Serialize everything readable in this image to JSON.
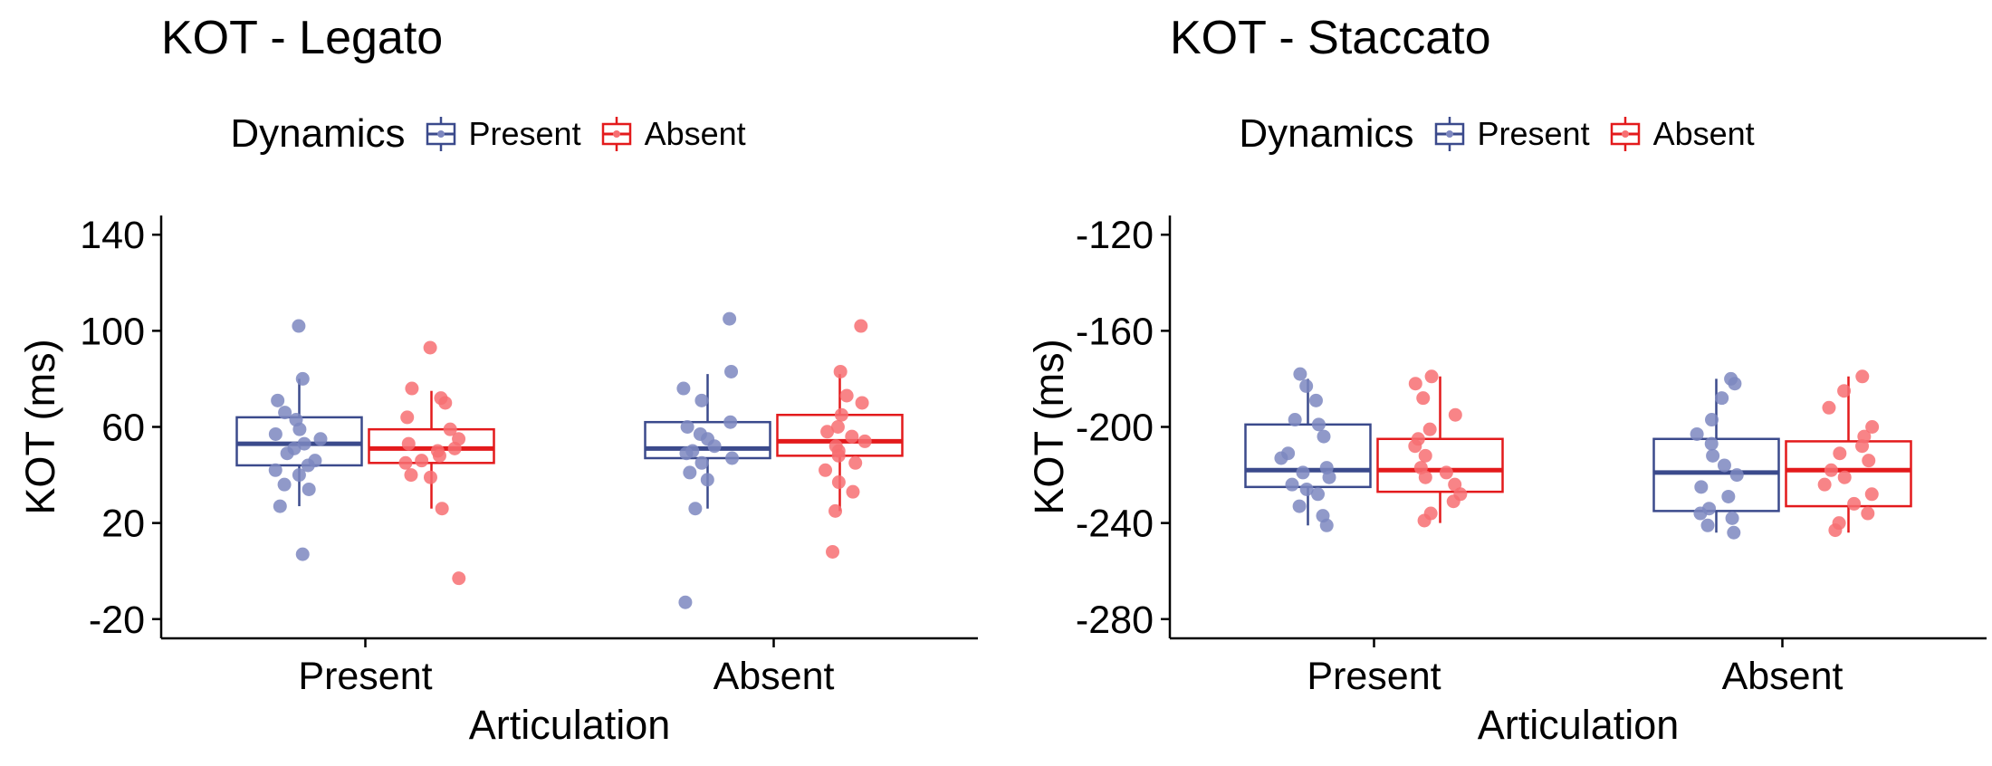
{
  "chart_data": [
    {
      "type": "boxplot",
      "title": "KOT - Legato",
      "xlabel": "Articulation",
      "ylabel": "KOT (ms)",
      "categories": [
        "Present",
        "Absent"
      ],
      "yticks": [
        140,
        100,
        60,
        20,
        -20
      ],
      "ylim": [
        -28,
        148
      ],
      "legend": {
        "title": "Dynamics",
        "position": "top",
        "entries": [
          "Present",
          "Absent"
        ]
      },
      "series": [
        {
          "name": "Present",
          "color": "#3b4a8c",
          "point_color": "#7d87c0",
          "boxes": [
            {
              "category": "Present",
              "q1": 44,
              "median": 53,
              "q3": 64,
              "whisker_low": 27,
              "whisker_high": 80,
              "points": [
                102,
                80,
                71,
                66,
                63,
                59,
                57,
                55,
                53,
                51,
                49,
                46,
                44,
                42,
                40,
                36,
                34,
                27,
                7
              ]
            },
            {
              "category": "Absent",
              "q1": 47,
              "median": 51,
              "q3": 62,
              "whisker_low": 26,
              "whisker_high": 82,
              "points": [
                105,
                83,
                76,
                71,
                62,
                60,
                57,
                55,
                52,
                50,
                49,
                47,
                45,
                41,
                38,
                26,
                -13
              ]
            }
          ]
        },
        {
          "name": "Absent",
          "color": "#e31a1c",
          "point_color": "#f76f72",
          "boxes": [
            {
              "category": "Present",
              "q1": 45,
              "median": 51,
              "q3": 59,
              "whisker_low": 26,
              "whisker_high": 75,
              "points": [
                93,
                76,
                72,
                70,
                64,
                59,
                55,
                53,
                51,
                50,
                48,
                46,
                45,
                40,
                39,
                26,
                -3
              ]
            },
            {
              "category": "Absent",
              "q1": 48,
              "median": 54,
              "q3": 65,
              "whisker_low": 25,
              "whisker_high": 82,
              "points": [
                102,
                83,
                73,
                70,
                65,
                60,
                58,
                56,
                54,
                52,
                50,
                48,
                45,
                42,
                37,
                33,
                25,
                8
              ]
            }
          ]
        }
      ]
    },
    {
      "type": "boxplot",
      "title": "KOT - Staccato",
      "xlabel": "Articulation",
      "ylabel": "KOT (ms)",
      "categories": [
        "Present",
        "Absent"
      ],
      "yticks": [
        -120,
        -160,
        -200,
        -240,
        -280
      ],
      "ylim": [
        -288,
        -112
      ],
      "legend": {
        "title": "Dynamics",
        "position": "top",
        "entries": [
          "Present",
          "Absent"
        ]
      },
      "series": [
        {
          "name": "Present",
          "color": "#3b4a8c",
          "point_color": "#7d87c0",
          "boxes": [
            {
              "category": "Present",
              "q1": -225,
              "median": -218,
              "q3": -199,
              "whisker_low": -241,
              "whisker_high": -180,
              "points": [
                -178,
                -183,
                -189,
                -197,
                -199,
                -204,
                -211,
                -213,
                -217,
                -219,
                -221,
                -224,
                -226,
                -228,
                -233,
                -237,
                -241
              ]
            },
            {
              "category": "Absent",
              "q1": -235,
              "median": -219,
              "q3": -205,
              "whisker_low": -244,
              "whisker_high": -180,
              "points": [
                -180,
                -182,
                -188,
                -197,
                -203,
                -207,
                -212,
                -216,
                -220,
                -225,
                -229,
                -234,
                -236,
                -238,
                -241,
                -244
              ]
            }
          ]
        },
        {
          "name": "Absent",
          "color": "#e31a1c",
          "point_color": "#f76f72",
          "boxes": [
            {
              "category": "Present",
              "q1": -227,
              "median": -218,
              "q3": -205,
              "whisker_low": -240,
              "whisker_high": -179,
              "points": [
                -179,
                -182,
                -188,
                -195,
                -201,
                -205,
                -208,
                -212,
                -217,
                -219,
                -221,
                -224,
                -228,
                -231,
                -236,
                -239
              ]
            },
            {
              "category": "Absent",
              "q1": -233,
              "median": -218,
              "q3": -206,
              "whisker_low": -244,
              "whisker_high": -179,
              "points": [
                -179,
                -185,
                -192,
                -200,
                -204,
                -208,
                -211,
                -214,
                -218,
                -221,
                -224,
                -228,
                -232,
                -236,
                -240,
                -243
              ]
            }
          ]
        }
      ]
    }
  ]
}
